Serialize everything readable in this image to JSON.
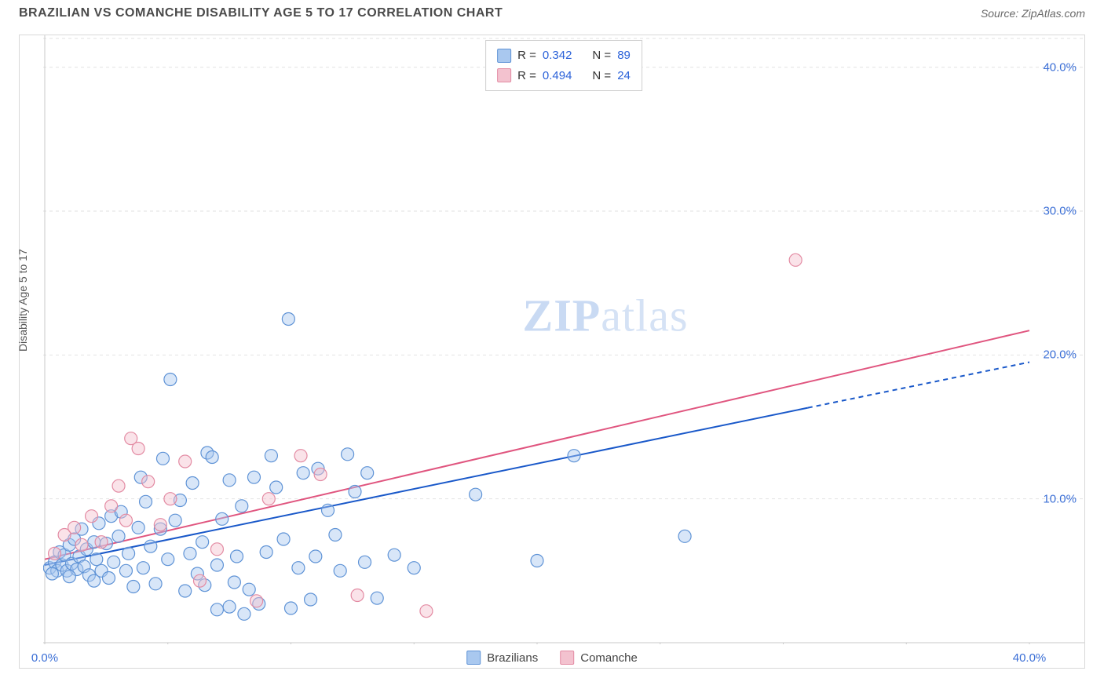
{
  "title": "BRAZILIAN VS COMANCHE DISABILITY AGE 5 TO 17 CORRELATION CHART",
  "source": "Source: ZipAtlas.com",
  "ylabel": "Disability Age 5 to 17",
  "watermark": {
    "bold": "ZIP",
    "rest": "atlas"
  },
  "chart": {
    "type": "scatter",
    "background_color": "#ffffff",
    "grid_color": "#e2e2e2",
    "axis_color": "#c9c9c9",
    "xlim": [
      0,
      40
    ],
    "ylim": [
      0,
      42
    ],
    "xticks": [
      0,
      5,
      10,
      15,
      20,
      25,
      30,
      35,
      40
    ],
    "xticks_labeled": {
      "0": "0.0%",
      "40": "40.0%"
    },
    "yticks": [
      10,
      20,
      30,
      40
    ],
    "yticks_fmt": [
      "10.0%",
      "20.0%",
      "30.0%",
      "40.0%"
    ],
    "tick_label_color": "#3b6fd6",
    "tick_fontsize": 15,
    "label_fontsize": 14,
    "marker_radius": 8,
    "marker_stroke_width": 1.2,
    "marker_fill_opacity": 0.45,
    "line_width": 2
  },
  "series": {
    "brazilians": {
      "label": "Brazilians",
      "color_fill": "#a9c8ef",
      "color_stroke": "#5f93d6",
      "line_color": "#1958c9",
      "trend": {
        "x1": 0,
        "y1": 5.4,
        "x2": 40,
        "y2": 19.5,
        "solid_until_x": 31
      },
      "R": "0.342",
      "N": "89",
      "points": [
        [
          0.2,
          5.2
        ],
        [
          0.4,
          5.6
        ],
        [
          0.5,
          5.0
        ],
        [
          0.6,
          6.3
        ],
        [
          0.7,
          5.4
        ],
        [
          0.8,
          6.1
        ],
        [
          0.9,
          5.0
        ],
        [
          1.0,
          6.8
        ],
        [
          1.1,
          5.5
        ],
        [
          1.2,
          7.2
        ],
        [
          1.3,
          5.1
        ],
        [
          1.4,
          6.0
        ],
        [
          1.5,
          7.9
        ],
        [
          1.6,
          5.3
        ],
        [
          1.7,
          6.5
        ],
        [
          1.8,
          4.7
        ],
        [
          2.0,
          7.0
        ],
        [
          2.1,
          5.8
        ],
        [
          2.2,
          8.3
        ],
        [
          2.3,
          5.0
        ],
        [
          2.5,
          6.9
        ],
        [
          2.6,
          4.5
        ],
        [
          2.7,
          8.8
        ],
        [
          2.8,
          5.6
        ],
        [
          3.0,
          7.4
        ],
        [
          3.1,
          9.1
        ],
        [
          3.3,
          5.0
        ],
        [
          3.4,
          6.2
        ],
        [
          3.6,
          3.9
        ],
        [
          3.8,
          8.0
        ],
        [
          3.9,
          11.5
        ],
        [
          4.0,
          5.2
        ],
        [
          4.1,
          9.8
        ],
        [
          4.3,
          6.7
        ],
        [
          4.5,
          4.1
        ],
        [
          4.7,
          7.9
        ],
        [
          4.8,
          12.8
        ],
        [
          5.0,
          5.8
        ],
        [
          5.1,
          18.3
        ],
        [
          5.3,
          8.5
        ],
        [
          5.5,
          9.9
        ],
        [
          5.7,
          3.6
        ],
        [
          5.9,
          6.2
        ],
        [
          6.0,
          11.1
        ],
        [
          6.2,
          4.8
        ],
        [
          6.4,
          7.0
        ],
        [
          6.6,
          13.2
        ],
        [
          6.8,
          12.9
        ],
        [
          7.0,
          2.3
        ],
        [
          7.0,
          5.4
        ],
        [
          7.2,
          8.6
        ],
        [
          7.5,
          2.5
        ],
        [
          7.5,
          11.3
        ],
        [
          7.7,
          4.2
        ],
        [
          7.8,
          6.0
        ],
        [
          8.0,
          9.5
        ],
        [
          8.1,
          2.0
        ],
        [
          8.3,
          3.7
        ],
        [
          8.5,
          11.5
        ],
        [
          8.7,
          2.7
        ],
        [
          9.0,
          6.3
        ],
        [
          9.2,
          13.0
        ],
        [
          9.4,
          10.8
        ],
        [
          9.7,
          7.2
        ],
        [
          9.9,
          22.5
        ],
        [
          10.0,
          2.4
        ],
        [
          10.3,
          5.2
        ],
        [
          10.5,
          11.8
        ],
        [
          10.8,
          3.0
        ],
        [
          11.0,
          6.0
        ],
        [
          11.1,
          12.1
        ],
        [
          11.5,
          9.2
        ],
        [
          11.8,
          7.5
        ],
        [
          12.0,
          5.0
        ],
        [
          12.3,
          13.1
        ],
        [
          12.6,
          10.5
        ],
        [
          13.0,
          5.6
        ],
        [
          13.1,
          11.8
        ],
        [
          13.5,
          3.1
        ],
        [
          14.2,
          6.1
        ],
        [
          15.0,
          5.2
        ],
        [
          17.5,
          10.3
        ],
        [
          20.0,
          5.7
        ],
        [
          21.5,
          13.0
        ],
        [
          26.0,
          7.4
        ],
        [
          0.3,
          4.8
        ],
        [
          1.0,
          4.6
        ],
        [
          2.0,
          4.3
        ],
        [
          6.5,
          4.0
        ]
      ]
    },
    "comanche": {
      "label": "Comanche",
      "color_fill": "#f3c2cf",
      "color_stroke": "#e38ba3",
      "line_color": "#e0557f",
      "trend": {
        "x1": 0,
        "y1": 5.8,
        "x2": 40,
        "y2": 21.7,
        "solid_until_x": 40
      },
      "R": "0.494",
      "N": "24",
      "points": [
        [
          0.4,
          6.2
        ],
        [
          0.8,
          7.5
        ],
        [
          1.2,
          8.0
        ],
        [
          1.5,
          6.8
        ],
        [
          1.9,
          8.8
        ],
        [
          2.3,
          7.0
        ],
        [
          2.7,
          9.5
        ],
        [
          3.0,
          10.9
        ],
        [
          3.3,
          8.5
        ],
        [
          3.5,
          14.2
        ],
        [
          3.8,
          13.5
        ],
        [
          4.2,
          11.2
        ],
        [
          4.7,
          8.2
        ],
        [
          5.1,
          10.0
        ],
        [
          5.7,
          12.6
        ],
        [
          6.3,
          4.3
        ],
        [
          7.0,
          6.5
        ],
        [
          8.6,
          2.9
        ],
        [
          9.1,
          10.0
        ],
        [
          10.4,
          13.0
        ],
        [
          11.2,
          11.7
        ],
        [
          12.7,
          3.3
        ],
        [
          15.5,
          2.2
        ],
        [
          30.5,
          26.6
        ]
      ]
    }
  },
  "legend_top": [
    {
      "series": "brazilians",
      "R_lbl": "R =",
      "N_lbl": "N ="
    },
    {
      "series": "comanche",
      "R_lbl": "R =",
      "N_lbl": "N ="
    }
  ]
}
